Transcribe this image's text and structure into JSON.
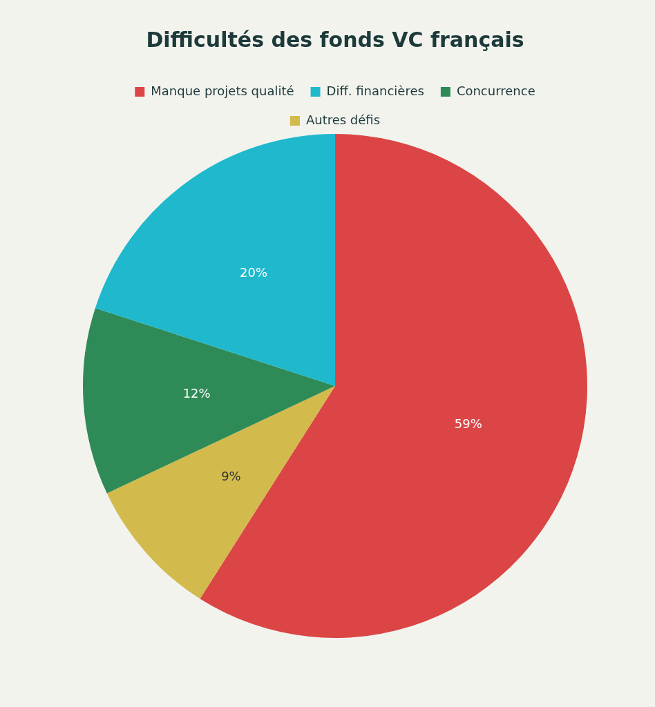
{
  "chart_data": {
    "type": "pie",
    "title": "Difficultés des fonds VC français",
    "categories": [
      "Manque projets qualité",
      "Diff. financières",
      "Concurrence",
      "Autres défis"
    ],
    "values": [
      59,
      20,
      12,
      9
    ],
    "colors": [
      "#db4545",
      "#1fb8cd",
      "#2e8b57",
      "#d2ba4c"
    ],
    "value_labels": [
      "59%",
      "20%",
      "12%",
      "9%"
    ],
    "legend": "top"
  }
}
